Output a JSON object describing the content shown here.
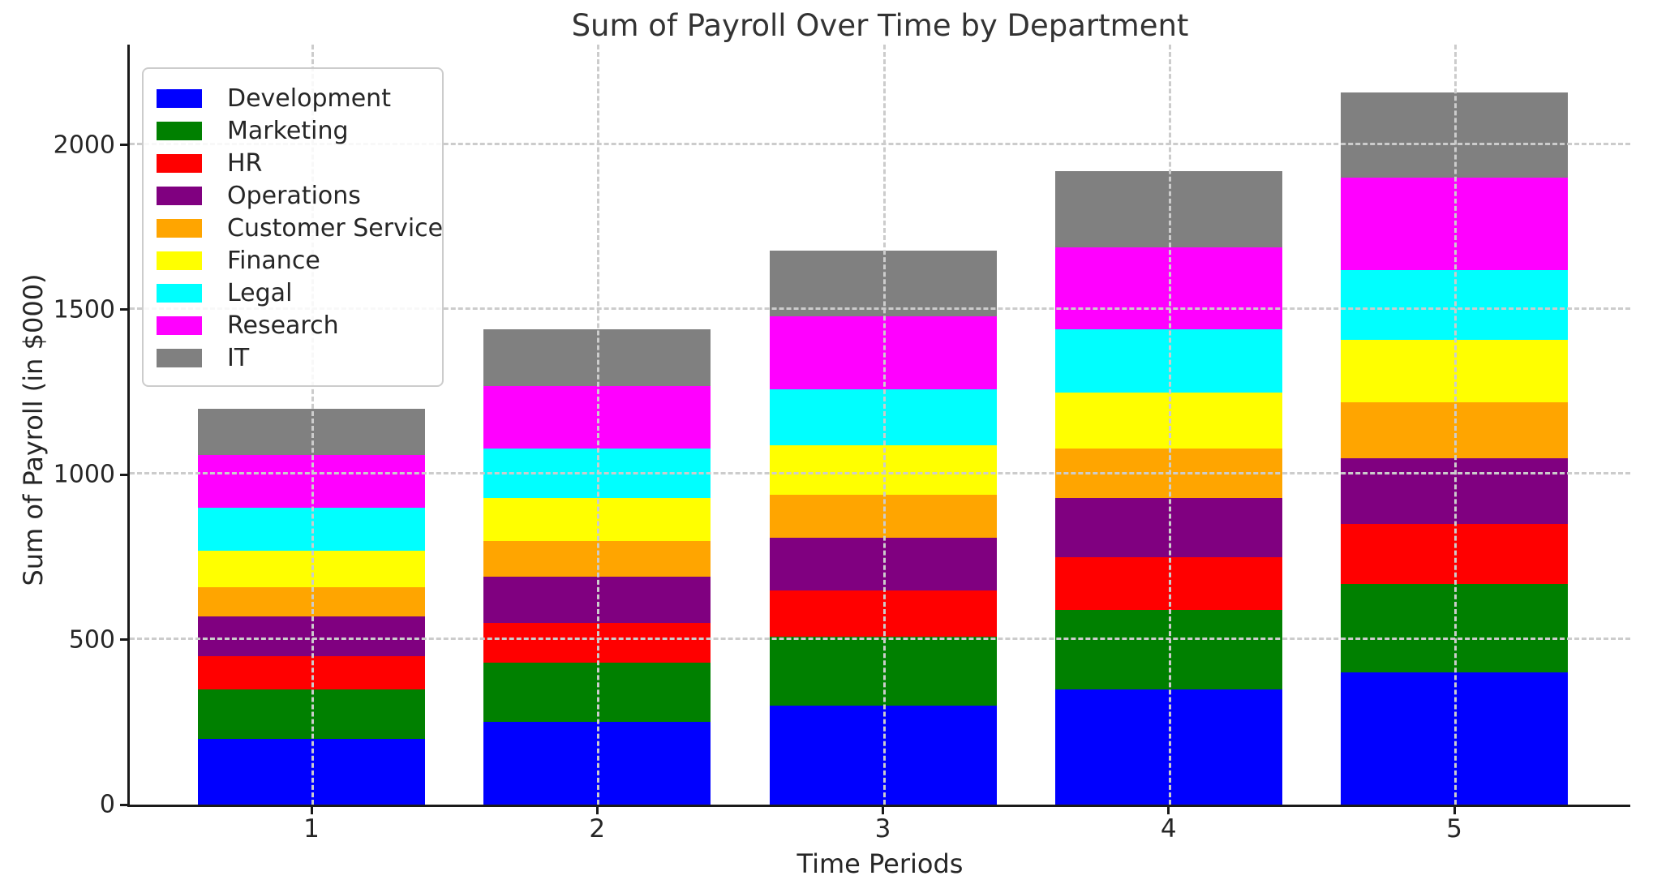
{
  "chart_data": {
    "type": "bar",
    "variant": "stacked-vertical",
    "title": "Sum of Payroll Over Time by Department",
    "xlabel": "Time Periods",
    "ylabel": "Sum of Payroll (in $000)",
    "categories": [
      "1",
      "2",
      "3",
      "4",
      "5"
    ],
    "series": [
      {
        "name": "Development",
        "color": "#0000ff",
        "values": [
          200,
          250,
          300,
          350,
          400
        ]
      },
      {
        "name": "Marketing",
        "color": "#008000",
        "values": [
          150,
          180,
          210,
          240,
          270
        ]
      },
      {
        "name": "HR",
        "color": "#ff0000",
        "values": [
          100,
          120,
          140,
          160,
          180
        ]
      },
      {
        "name": "Operations",
        "color": "#800080",
        "values": [
          120,
          140,
          160,
          180,
          200
        ]
      },
      {
        "name": "Customer Service",
        "color": "#ffa500",
        "values": [
          90,
          110,
          130,
          150,
          170
        ]
      },
      {
        "name": "Finance",
        "color": "#ffff00",
        "values": [
          110,
          130,
          150,
          170,
          190
        ]
      },
      {
        "name": "Legal",
        "color": "#00ffff",
        "values": [
          130,
          150,
          170,
          190,
          210
        ]
      },
      {
        "name": "Research",
        "color": "#ff00ff",
        "values": [
          160,
          190,
          220,
          250,
          280
        ]
      },
      {
        "name": "IT",
        "color": "#808080",
        "values": [
          140,
          170,
          200,
          230,
          260
        ]
      }
    ],
    "stack_totals": [
      1200,
      1440,
      1680,
      1920,
      2160
    ],
    "y_ticks": [
      0,
      500,
      1000,
      1500,
      2000
    ],
    "ylim": [
      0,
      2304
    ],
    "grid": "dashed, both axes, light gray, drawn over bars",
    "legend_position": "upper left",
    "text_color": "#262626",
    "background_color": "#ffffff"
  }
}
